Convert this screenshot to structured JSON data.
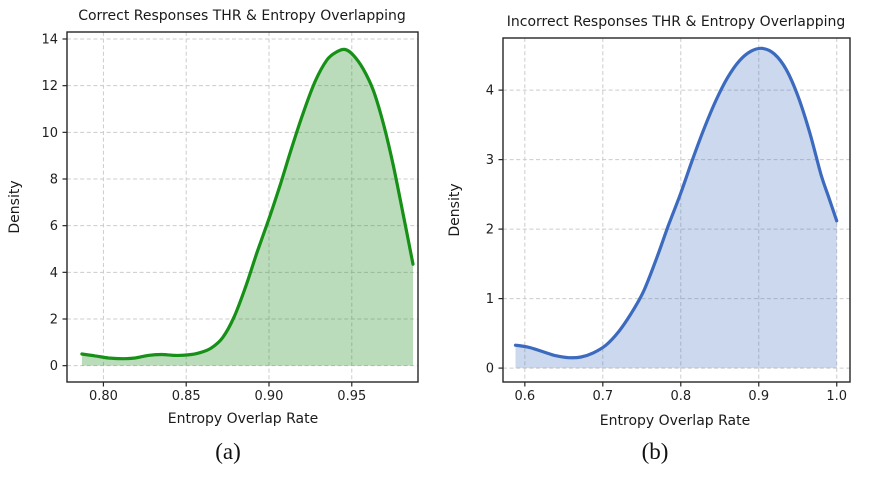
{
  "figure": {
    "background": "#ffffff"
  },
  "chart_data": [
    {
      "type": "area",
      "subtype": "kde-density",
      "title": "Correct Responses THR & Entropy Overlapping",
      "xlabel": "Entropy Overlap Rate",
      "ylabel": "Density",
      "caption": "(a)",
      "line_color": "#169016",
      "fill_color": "rgba(30,140,30,0.30)",
      "grid": true,
      "legend": "none",
      "xlim": [
        0.778,
        0.99
      ],
      "ylim": [
        -0.7,
        14.3
      ],
      "xticks": [
        0.8,
        0.85,
        0.9,
        0.95
      ],
      "xtick_labels": [
        "0.80",
        "0.85",
        "0.90",
        "0.95"
      ],
      "yticks": [
        0,
        2,
        4,
        6,
        8,
        10,
        12,
        14
      ],
      "ytick_labels": [
        "0",
        "2",
        "4",
        "6",
        "8",
        "10",
        "12",
        "14"
      ],
      "x": [
        0.787,
        0.795,
        0.803,
        0.811,
        0.819,
        0.827,
        0.835,
        0.843,
        0.851,
        0.858,
        0.865,
        0.872,
        0.879,
        0.886,
        0.893,
        0.9,
        0.907,
        0.914,
        0.921,
        0.928,
        0.935,
        0.941,
        0.946,
        0.951,
        0.957,
        0.963,
        0.969,
        0.975,
        0.981,
        0.987
      ],
      "y": [
        0.5,
        0.42,
        0.33,
        0.3,
        0.33,
        0.44,
        0.48,
        0.44,
        0.46,
        0.55,
        0.75,
        1.2,
        2.1,
        3.4,
        4.9,
        6.3,
        7.8,
        9.4,
        10.9,
        12.2,
        13.1,
        13.45,
        13.55,
        13.3,
        12.7,
        11.8,
        10.4,
        8.6,
        6.5,
        4.35
      ],
      "peak": {
        "x": 0.946,
        "density": 13.55
      }
    },
    {
      "type": "area",
      "subtype": "kde-density",
      "title": "Incorrect Responses THR & Entropy Overlapping",
      "xlabel": "Entropy Overlap Rate",
      "ylabel": "Density",
      "caption": "(b)",
      "line_color": "#3b6abe",
      "fill_color": "rgba(70,115,190,0.28)",
      "grid": true,
      "legend": "none",
      "xlim": [
        0.572,
        1.017
      ],
      "ylim": [
        -0.2,
        4.75
      ],
      "xticks": [
        0.6,
        0.7,
        0.8,
        0.9,
        1.0
      ],
      "xtick_labels": [
        "0.6",
        "0.7",
        "0.8",
        "0.9",
        "1.0"
      ],
      "yticks": [
        0,
        1,
        2,
        3,
        4
      ],
      "ytick_labels": [
        "0",
        "1",
        "2",
        "3",
        "4"
      ],
      "x": [
        0.588,
        0.605,
        0.622,
        0.639,
        0.656,
        0.672,
        0.688,
        0.704,
        0.72,
        0.736,
        0.752,
        0.768,
        0.784,
        0.8,
        0.815,
        0.83,
        0.845,
        0.86,
        0.875,
        0.89,
        0.905,
        0.92,
        0.935,
        0.95,
        0.965,
        0.98,
        0.99,
        1.0
      ],
      "y": [
        0.33,
        0.3,
        0.24,
        0.18,
        0.15,
        0.16,
        0.22,
        0.33,
        0.52,
        0.78,
        1.1,
        1.55,
        2.05,
        2.52,
        3.0,
        3.45,
        3.85,
        4.18,
        4.42,
        4.56,
        4.6,
        4.52,
        4.3,
        3.92,
        3.4,
        2.78,
        2.45,
        2.12
      ],
      "peak": {
        "x": 0.91,
        "density": 4.6
      }
    }
  ]
}
